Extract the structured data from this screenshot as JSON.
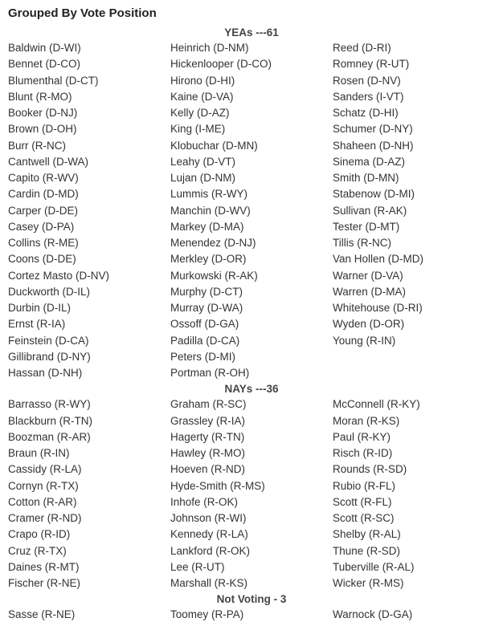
{
  "heading": "Grouped By Vote Position",
  "groups": [
    {
      "header": "YEAs ---61",
      "columns": [
        [
          "Baldwin (D-WI)",
          "Bennet (D-CO)",
          "Blumenthal (D-CT)",
          "Blunt (R-MO)",
          "Booker (D-NJ)",
          "Brown (D-OH)",
          "Burr (R-NC)",
          "Cantwell (D-WA)",
          "Capito (R-WV)",
          "Cardin (D-MD)",
          "Carper (D-DE)",
          "Casey (D-PA)",
          "Collins (R-ME)",
          "Coons (D-DE)",
          "Cortez Masto (D-NV)",
          "Duckworth (D-IL)",
          "Durbin (D-IL)",
          "Ernst (R-IA)",
          "Feinstein (D-CA)",
          "Gillibrand (D-NY)",
          "Hassan (D-NH)"
        ],
        [
          "Heinrich (D-NM)",
          "Hickenlooper (D-CO)",
          "Hirono (D-HI)",
          "Kaine (D-VA)",
          "Kelly (D-AZ)",
          "King (I-ME)",
          "Klobuchar (D-MN)",
          "Leahy (D-VT)",
          "Lujan (D-NM)",
          "Lummis (R-WY)",
          "Manchin (D-WV)",
          "Markey (D-MA)",
          "Menendez (D-NJ)",
          "Merkley (D-OR)",
          "Murkowski (R-AK)",
          "Murphy (D-CT)",
          "Murray (D-WA)",
          "Ossoff (D-GA)",
          "Padilla (D-CA)",
          "Peters (D-MI)",
          "Portman (R-OH)"
        ],
        [
          "Reed (D-RI)",
          "Romney (R-UT)",
          "Rosen (D-NV)",
          "Sanders (I-VT)",
          "Schatz (D-HI)",
          "Schumer (D-NY)",
          "Shaheen (D-NH)",
          "Sinema (D-AZ)",
          "Smith (D-MN)",
          "Stabenow (D-MI)",
          "Sullivan (R-AK)",
          "Tester (D-MT)",
          "Tillis (R-NC)",
          "Van Hollen (D-MD)",
          "Warner (D-VA)",
          "Warren (D-MA)",
          "Whitehouse (D-RI)",
          "Wyden (D-OR)",
          "Young (R-IN)"
        ]
      ]
    },
    {
      "header": "NAYs ---36",
      "columns": [
        [
          "Barrasso (R-WY)",
          "Blackburn (R-TN)",
          "Boozman (R-AR)",
          "Braun (R-IN)",
          "Cassidy (R-LA)",
          "Cornyn (R-TX)",
          "Cotton (R-AR)",
          "Cramer (R-ND)",
          "Crapo (R-ID)",
          "Cruz (R-TX)",
          "Daines (R-MT)",
          "Fischer (R-NE)"
        ],
        [
          "Graham (R-SC)",
          "Grassley (R-IA)",
          "Hagerty (R-TN)",
          "Hawley (R-MO)",
          "Hoeven (R-ND)",
          "Hyde-Smith (R-MS)",
          "Inhofe (R-OK)",
          "Johnson (R-WI)",
          "Kennedy (R-LA)",
          "Lankford (R-OK)",
          "Lee (R-UT)",
          "Marshall (R-KS)"
        ],
        [
          "McConnell (R-KY)",
          "Moran (R-KS)",
          "Paul (R-KY)",
          "Risch (R-ID)",
          "Rounds (R-SD)",
          "Rubio (R-FL)",
          "Scott (R-FL)",
          "Scott (R-SC)",
          "Shelby (R-AL)",
          "Thune (R-SD)",
          "Tuberville (R-AL)",
          "Wicker (R-MS)"
        ]
      ]
    },
    {
      "header": "Not Voting - 3",
      "columns": [
        [
          "Sasse (R-NE)"
        ],
        [
          "Toomey (R-PA)"
        ],
        [
          "Warnock (D-GA)"
        ]
      ]
    }
  ]
}
